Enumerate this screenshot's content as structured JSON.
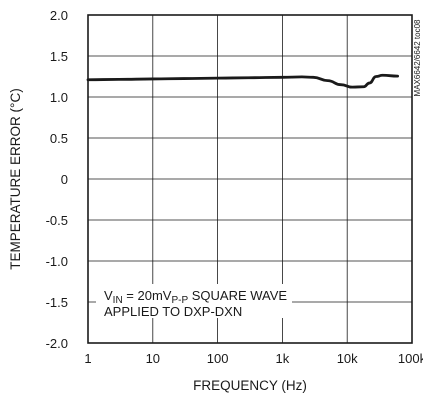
{
  "chart_data": {
    "type": "line",
    "xlabel": "FREQUENCY (Hz)",
    "ylabel": "TEMPERATURE ERROR (°C)",
    "x_scale": "log",
    "xlim": [
      1,
      100000
    ],
    "ylim": [
      -2.0,
      2.0
    ],
    "x_ticks": [
      1,
      10,
      100,
      1000,
      10000,
      100000
    ],
    "x_tick_labels": [
      "1",
      "10",
      "100",
      "1k",
      "10k",
      "100k"
    ],
    "y_ticks": [
      2.0,
      1.5,
      1.0,
      0.5,
      0,
      -0.5,
      -1.0,
      -1.5,
      -2.0
    ],
    "y_tick_labels": [
      "2.0",
      "1.5",
      "1.0",
      "0.5",
      "0",
      "-0.5",
      "-1.0",
      "-1.5",
      "-2.0"
    ],
    "grid": true,
    "series": [
      {
        "color": "#1a1a1a",
        "points": [
          [
            1,
            1.21
          ],
          [
            3,
            1.215
          ],
          [
            10,
            1.22
          ],
          [
            30,
            1.225
          ],
          [
            100,
            1.23
          ],
          [
            300,
            1.235
          ],
          [
            1000,
            1.24
          ],
          [
            2000,
            1.245
          ],
          [
            3000,
            1.24
          ],
          [
            5000,
            1.2
          ],
          [
            8000,
            1.15
          ],
          [
            12000,
            1.12
          ],
          [
            18000,
            1.125
          ],
          [
            22000,
            1.17
          ],
          [
            28000,
            1.25
          ],
          [
            35000,
            1.265
          ],
          [
            60000,
            1.255
          ]
        ]
      }
    ],
    "annotation": {
      "line1_pre": "V",
      "line1_sub1": "IN",
      "line1_mid": " = 20mV",
      "line1_sub2": "P-P",
      "line1_post": " SQUARE WAVE",
      "line2": "APPLIED TO DXP-DXN"
    },
    "figure_code": "MAX6642/6642 toc08"
  }
}
